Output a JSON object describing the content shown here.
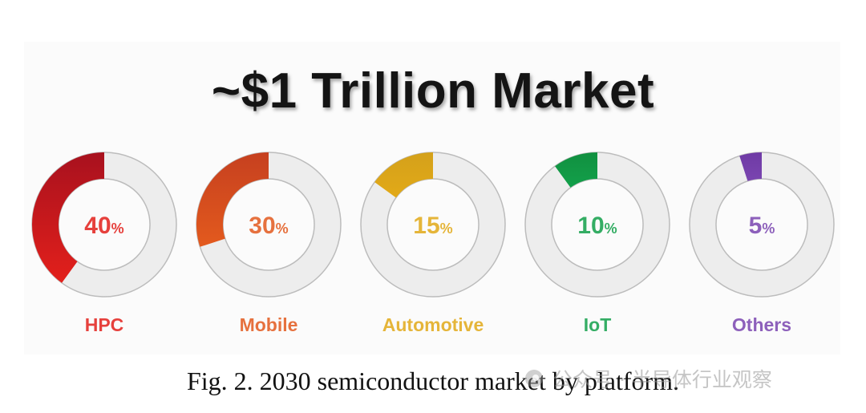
{
  "chart_data": {
    "type": "donut",
    "title": "~$1 Trillion Market",
    "categories": [
      "HPC",
      "Mobile",
      "Automotive",
      "IoT",
      "Others"
    ],
    "values": [
      40,
      30,
      15,
      10,
      5
    ],
    "value_suffix": "%",
    "colors": [
      "#e3201b",
      "#e35a1e",
      "#e2a918",
      "#12a04a",
      "#7a45b0"
    ],
    "gradient_start_colors": [
      "#a8111e",
      "#c6401f",
      "#d4a11a",
      "#119040",
      "#6f3aa5"
    ],
    "ring_track_color": "#ededed"
  },
  "caption": "Fig. 2. 2030 semiconductor market by platform.",
  "watermark": "公众号 · 半导体行业观察"
}
